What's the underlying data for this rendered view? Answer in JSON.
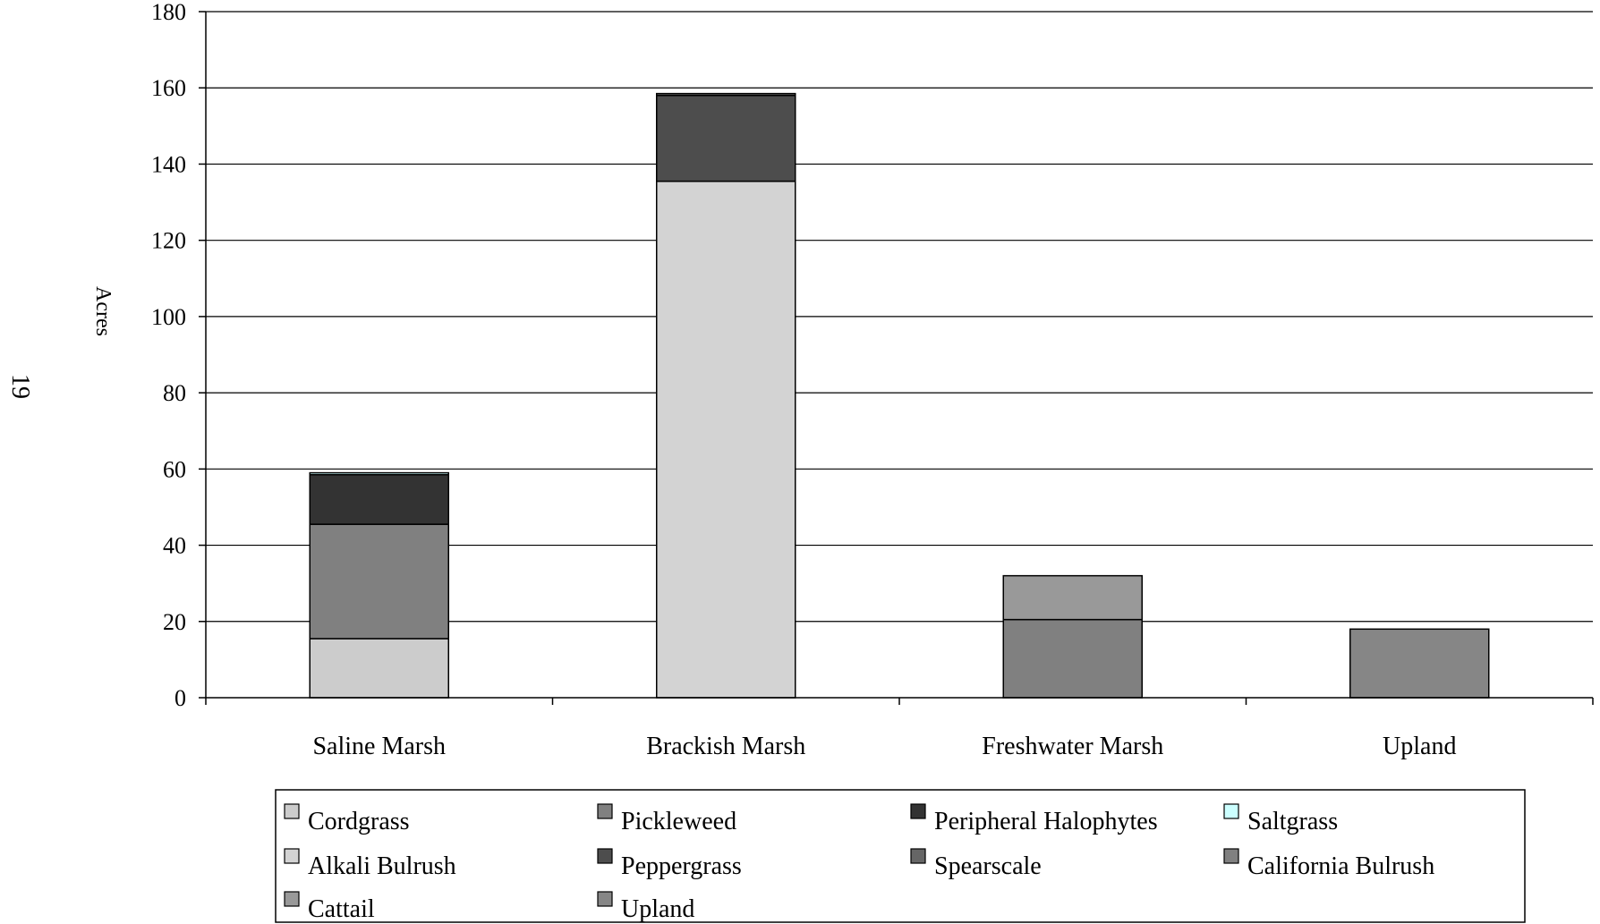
{
  "page": {
    "page_number": "19"
  },
  "chart_data": {
    "type": "bar",
    "stacked": true,
    "title": "",
    "xlabel": "",
    "ylabel": "Acres",
    "ylim": [
      0,
      180
    ],
    "yticks": [
      0,
      20,
      40,
      60,
      80,
      100,
      120,
      140,
      160,
      180
    ],
    "grid": true,
    "legend_position": "bottom",
    "categories": [
      "Saline Marsh",
      "Brackish Marsh",
      "Freshwater Marsh",
      "Upland"
    ],
    "series": [
      {
        "name": "Cordgrass",
        "color": "#cccccc",
        "values": [
          15.5,
          0,
          0,
          0
        ]
      },
      {
        "name": "Pickleweed",
        "color": "#808080",
        "values": [
          30,
          0,
          0,
          0
        ]
      },
      {
        "name": "Peripheral Halophytes",
        "color": "#333333",
        "values": [
          13,
          0,
          0,
          0
        ]
      },
      {
        "name": "Saltgrass",
        "color": "#ccffff",
        "values": [
          0.5,
          0,
          0,
          0
        ]
      },
      {
        "name": "Alkali Bulrush",
        "color": "#d3d3d3",
        "values": [
          0,
          135.5,
          0,
          0
        ]
      },
      {
        "name": "Peppergrass",
        "color": "#4d4d4d",
        "values": [
          0,
          22.5,
          0,
          0
        ]
      },
      {
        "name": "Spearscale",
        "color": "#666666",
        "values": [
          0,
          0.5,
          0,
          0
        ]
      },
      {
        "name": "California Bulrush",
        "color": "#808080",
        "values": [
          0,
          0,
          20.5,
          0
        ]
      },
      {
        "name": "Cattail",
        "color": "#999999",
        "values": [
          0,
          0,
          11.5,
          0
        ]
      },
      {
        "name": "Upland",
        "color": "#868686",
        "values": [
          0,
          0,
          0,
          18
        ]
      }
    ]
  }
}
